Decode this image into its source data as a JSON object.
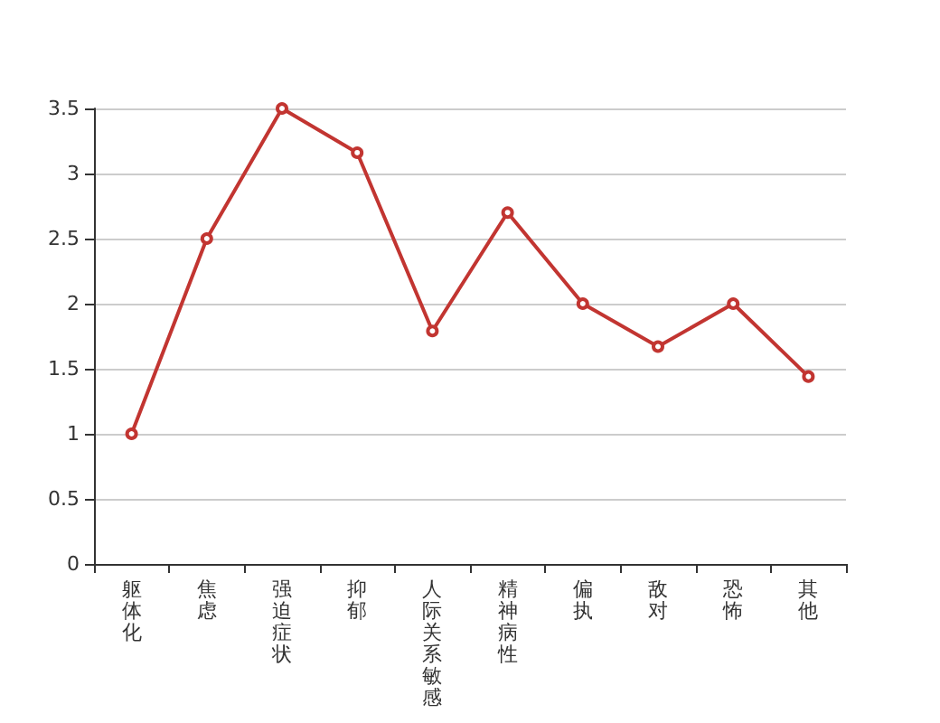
{
  "chart_data": {
    "type": "line",
    "categories": [
      "躯体化",
      "焦虑",
      "强迫症状",
      "抑郁",
      "人际关系敏感",
      "精神病性",
      "偏执",
      "敌对",
      "恐怖",
      "其他"
    ],
    "series": [
      {
        "color": "#c23531",
        "values": [
          1.0,
          2.5,
          3.5,
          3.16,
          1.79,
          2.7,
          2.0,
          1.67,
          2.0,
          1.44
        ]
      }
    ],
    "ylim": [
      0,
      3.5
    ],
    "yticks": [
      0,
      0.5,
      1,
      1.5,
      2,
      2.5,
      3,
      3.5
    ],
    "grid": "y",
    "marker": "circle",
    "line_style": "solid"
  }
}
